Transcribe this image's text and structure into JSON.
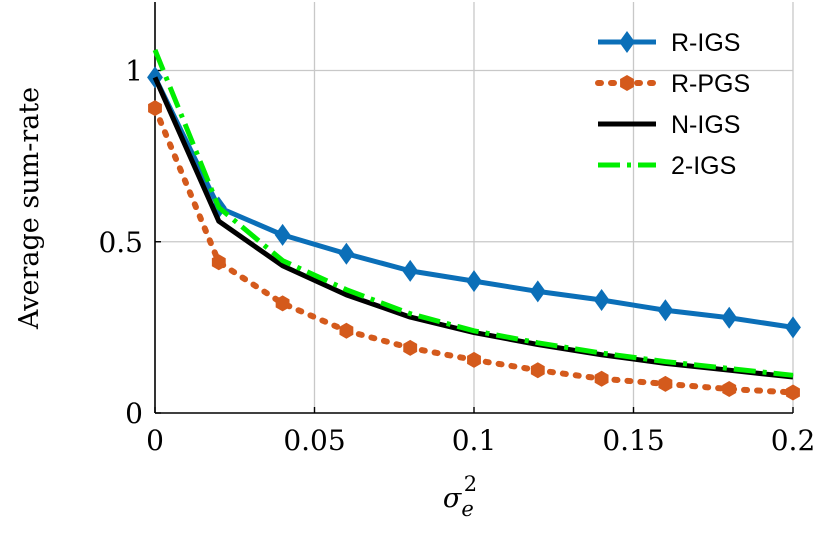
{
  "chart_data": {
    "type": "line",
    "title": "",
    "xlabel": "σ",
    "xlabel_sub": "e",
    "xlabel_sup": "2",
    "ylabel": "Average sum-rate",
    "xlim": [
      0,
      0.2
    ],
    "ylim": [
      0,
      1.2
    ],
    "xticks": [
      0,
      0.05,
      0.1,
      0.15,
      0.2
    ],
    "xtick_labels": [
      "0",
      "0.05",
      "0.1",
      "0.15",
      "0.2"
    ],
    "yticks": [
      0,
      0.5,
      1
    ],
    "ytick_labels": [
      "0",
      "0.5",
      "1"
    ],
    "grid": true,
    "legend_position": "top-right",
    "x": [
      0,
      0.02,
      0.04,
      0.06,
      0.08,
      0.1,
      0.12,
      0.14,
      0.16,
      0.18,
      0.2
    ],
    "series": [
      {
        "name": "R-IGS",
        "color": "#0b6fb8",
        "marker": "diamond",
        "dash": "solid",
        "values": [
          0.98,
          0.6,
          0.52,
          0.465,
          0.415,
          0.385,
          0.355,
          0.33,
          0.3,
          0.278,
          0.25
        ]
      },
      {
        "name": "R-PGS",
        "color": "#d45a1c",
        "marker": "hexagon",
        "dash": "dotted",
        "values": [
          0.89,
          0.44,
          0.32,
          0.24,
          0.19,
          0.155,
          0.125,
          0.1,
          0.085,
          0.07,
          0.06
        ]
      },
      {
        "name": "N-IGS",
        "color": "#000000",
        "marker": "none",
        "dash": "solid",
        "values": [
          0.98,
          0.56,
          0.43,
          0.345,
          0.28,
          0.235,
          0.2,
          0.17,
          0.145,
          0.125,
          0.105
        ]
      },
      {
        "name": "2-IGS",
        "color": "#00ee00",
        "marker": "none",
        "dash": "dashdot",
        "values": [
          1.06,
          0.6,
          0.445,
          0.36,
          0.29,
          0.24,
          0.205,
          0.175,
          0.15,
          0.13,
          0.11
        ]
      }
    ]
  }
}
